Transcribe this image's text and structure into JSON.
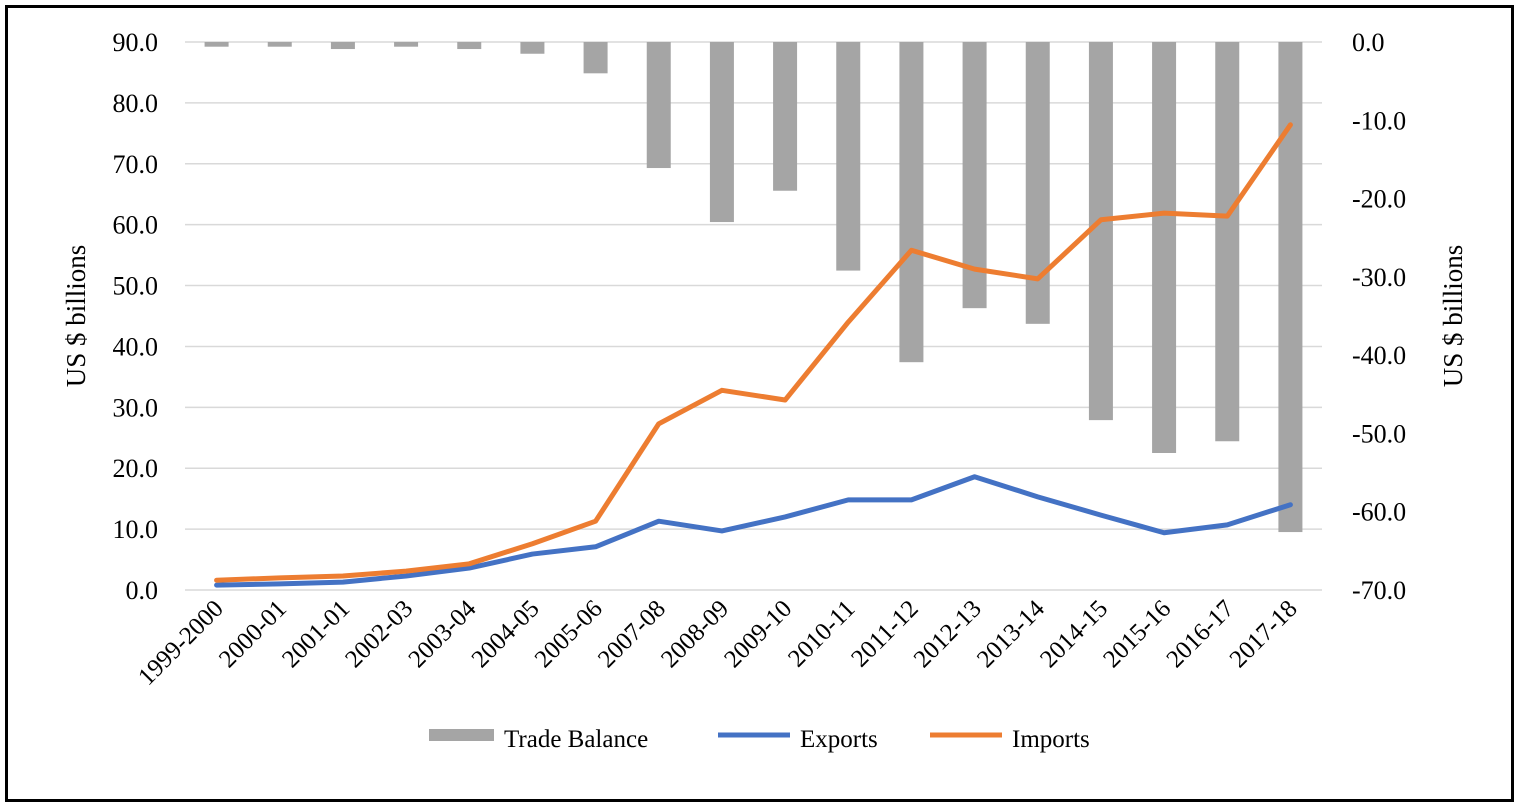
{
  "chart_data": {
    "type": "bar+line",
    "categories": [
      "1999-2000",
      "2000-01",
      "2001-01",
      "2002-03",
      "2003-04",
      "2004-05",
      "2005-06",
      "2007-08",
      "2008-09",
      "2009-10",
      "2010-11",
      "2011-12",
      "2012-13",
      "2013-14",
      "2014-15",
      "2015-16",
      "2016-17",
      "2017-18"
    ],
    "series": [
      {
        "name": "Trade Balance",
        "type": "bar",
        "axis": "right",
        "color": "#a5a5a5",
        "values": [
          -0.6,
          -0.6,
          -0.9,
          -0.6,
          -0.9,
          -1.5,
          -4.0,
          -16.1,
          -23.0,
          -19.0,
          -29.2,
          -40.9,
          -34.0,
          -36.0,
          -48.3,
          -52.5,
          -51.0,
          -62.6
        ]
      },
      {
        "name": "Exports",
        "type": "line",
        "axis": "left",
        "color": "#4472c4",
        "values": [
          0.8,
          1.0,
          1.3,
          2.3,
          3.6,
          5.9,
          7.1,
          11.3,
          9.7,
          12.0,
          14.8,
          14.8,
          18.6,
          15.3,
          12.3,
          9.4,
          10.7,
          14.0
        ]
      },
      {
        "name": "Imports",
        "type": "line",
        "axis": "left",
        "color": "#ed7d31",
        "values": [
          1.6,
          2.0,
          2.3,
          3.1,
          4.3,
          7.6,
          11.3,
          27.3,
          32.8,
          31.2,
          44.0,
          55.8,
          52.7,
          51.1,
          60.8,
          61.9,
          61.4,
          76.4
        ]
      }
    ],
    "ylabel": "US $ billions",
    "y2label": "US $ billions",
    "ylim": [
      0,
      90
    ],
    "y2lim": [
      -70,
      0
    ],
    "yticks": [
      "0.0",
      "10.0",
      "20.0",
      "30.0",
      "40.0",
      "50.0",
      "60.0",
      "70.0",
      "80.0",
      "90.0"
    ],
    "y2ticks": [
      "-70.0",
      "-60.0",
      "-50.0",
      "-40.0",
      "-30.0",
      "-20.0",
      "-10.0",
      "0.0"
    ],
    "grid": true,
    "legend": "bottom",
    "legend_labels": [
      "Trade Balance",
      "Exports",
      "Imports"
    ]
  }
}
